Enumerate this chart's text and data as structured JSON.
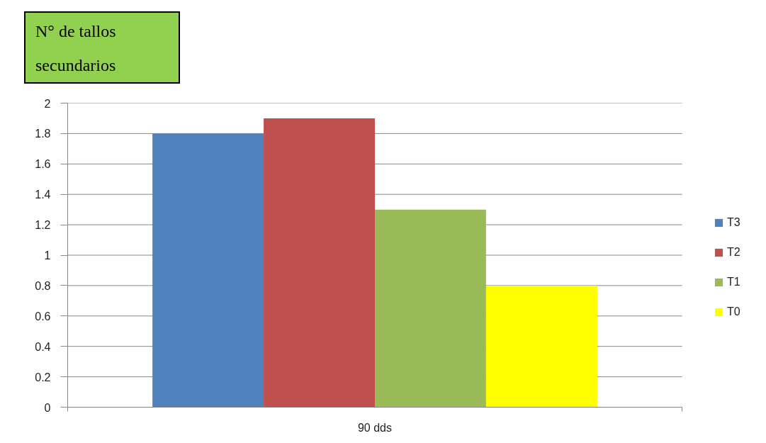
{
  "chart_data": {
    "type": "bar",
    "title": "N° de tallos secundarios",
    "categories": [
      "90 dds"
    ],
    "series": [
      {
        "name": "T3",
        "color": "#4f81bd",
        "values": [
          1.8
        ]
      },
      {
        "name": "T2",
        "color": "#c0504d",
        "values": [
          1.9
        ]
      },
      {
        "name": "T1",
        "color": "#9bbb59",
        "values": [
          1.3
        ]
      },
      {
        "name": "T0",
        "color": "#ffff00",
        "values": [
          0.8
        ]
      }
    ],
    "ylim": [
      0,
      2
    ],
    "yticks": [
      0,
      0.2,
      0.4,
      0.6,
      0.8,
      1,
      1.2,
      1.4,
      1.6,
      1.8,
      2
    ],
    "grid": "y",
    "legend": "right"
  }
}
